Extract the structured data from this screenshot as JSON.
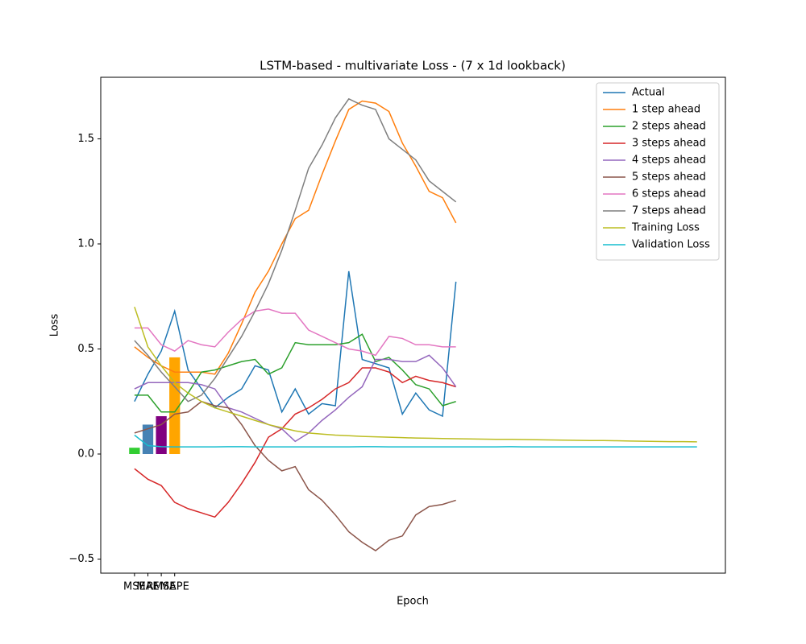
{
  "chart_data": {
    "type": "line",
    "title": "LSTM-based - multivariate Loss - (7 x 1d lookback)",
    "xlabel": "Epoch",
    "ylabel": "Loss",
    "xlim": [
      -2.52,
      44.12
    ],
    "ylim": [
      -0.567,
      1.793
    ],
    "yticks": [
      {
        "value": -0.5,
        "label": "−0.5"
      },
      {
        "value": 0,
        "label": "0.0"
      },
      {
        "value": 0.5,
        "label": "0.5"
      },
      {
        "value": 1.0,
        "label": "1.0"
      },
      {
        "value": 1.5,
        "label": "1.5"
      }
    ],
    "legend": "upper right",
    "bars": {
      "type": "bar",
      "categories": [
        "MSE",
        "MAE",
        "RMSE",
        "MAPE"
      ],
      "values": [
        0.03,
        0.14,
        0.18,
        0.46
      ],
      "colors": [
        "#32cd32",
        "#4682b4",
        "#800080",
        "#ffa500"
      ]
    },
    "series": [
      {
        "name": "Actual",
        "color": "#1f77b4",
        "values": [
          0.25,
          0.38,
          0.49,
          0.68,
          0.4,
          0.31,
          0.22,
          0.27,
          0.31,
          0.42,
          0.4,
          0.2,
          0.31,
          0.19,
          0.24,
          0.23,
          0.87,
          0.45,
          0.43,
          0.41,
          0.19,
          0.29,
          0.21,
          0.18,
          0.82
        ]
      },
      {
        "name": "1 step ahead",
        "color": "#ff7f0e",
        "values": [
          0.51,
          0.46,
          0.42,
          0.39,
          0.39,
          0.39,
          0.38,
          0.48,
          0.62,
          0.77,
          0.87,
          1.0,
          1.12,
          1.16,
          1.33,
          1.49,
          1.64,
          1.68,
          1.67,
          1.63,
          1.48,
          1.37,
          1.25,
          1.22,
          1.1
        ]
      },
      {
        "name": "2 steps ahead",
        "color": "#2ca02c",
        "values": [
          0.28,
          0.28,
          0.2,
          0.2,
          0.29,
          0.39,
          0.4,
          0.42,
          0.44,
          0.45,
          0.38,
          0.41,
          0.53,
          0.52,
          0.52,
          0.52,
          0.53,
          0.57,
          0.44,
          0.46,
          0.4,
          0.33,
          0.31,
          0.23,
          0.25
        ]
      },
      {
        "name": "3 steps ahead",
        "color": "#d62728",
        "values": [
          -0.07,
          -0.12,
          -0.15,
          -0.23,
          -0.26,
          -0.28,
          -0.3,
          -0.23,
          -0.14,
          -0.04,
          0.08,
          0.12,
          0.19,
          0.22,
          0.26,
          0.31,
          0.34,
          0.41,
          0.41,
          0.39,
          0.34,
          0.37,
          0.35,
          0.34,
          0.32
        ]
      },
      {
        "name": "4 steps ahead",
        "color": "#9467bd",
        "values": [
          0.31,
          0.34,
          0.34,
          0.34,
          0.34,
          0.33,
          0.31,
          0.22,
          0.2,
          0.17,
          0.14,
          0.12,
          0.06,
          0.1,
          0.16,
          0.21,
          0.27,
          0.32,
          0.45,
          0.45,
          0.44,
          0.44,
          0.47,
          0.41,
          0.32
        ]
      },
      {
        "name": "5 steps ahead",
        "color": "#8c564b",
        "values": [
          0.1,
          0.12,
          0.14,
          0.19,
          0.2,
          0.25,
          0.23,
          0.22,
          0.14,
          0.04,
          -0.03,
          -0.08,
          -0.06,
          -0.17,
          -0.22,
          -0.29,
          -0.37,
          -0.42,
          -0.46,
          -0.41,
          -0.39,
          -0.29,
          -0.25,
          -0.24,
          -0.22
        ]
      },
      {
        "name": "6 steps ahead",
        "color": "#e377c2",
        "values": [
          0.6,
          0.6,
          0.52,
          0.49,
          0.54,
          0.52,
          0.51,
          0.58,
          0.64,
          0.68,
          0.69,
          0.67,
          0.67,
          0.59,
          0.56,
          0.53,
          0.5,
          0.49,
          0.47,
          0.56,
          0.55,
          0.52,
          0.52,
          0.51,
          0.51
        ]
      },
      {
        "name": "7 steps ahead",
        "color": "#7f7f7f",
        "values": [
          0.54,
          0.47,
          0.39,
          0.32,
          0.25,
          0.28,
          0.36,
          0.46,
          0.56,
          0.68,
          0.81,
          0.97,
          1.16,
          1.36,
          1.47,
          1.6,
          1.69,
          1.66,
          1.64,
          1.5,
          1.45,
          1.4,
          1.3,
          1.25,
          1.2
        ]
      },
      {
        "name": "Training Loss",
        "color": "#bcbd22",
        "values": [
          0.7,
          0.51,
          0.42,
          0.34,
          0.29,
          0.25,
          0.22,
          0.2,
          0.18,
          0.16,
          0.14,
          0.125,
          0.11,
          0.1,
          0.095,
          0.09,
          0.087,
          0.084,
          0.082,
          0.08,
          0.078,
          0.076,
          0.075,
          0.074,
          0.073,
          0.072,
          0.071,
          0.07,
          0.07,
          0.069,
          0.068,
          0.067,
          0.066,
          0.065,
          0.064,
          0.064,
          0.063,
          0.062,
          0.061,
          0.06,
          0.059,
          0.059,
          0.058
        ]
      },
      {
        "name": "Validation Loss",
        "color": "#17becf",
        "values": [
          0.09,
          0.04,
          0.035,
          0.034,
          0.034,
          0.034,
          0.034,
          0.035,
          0.035,
          0.034,
          0.034,
          0.034,
          0.034,
          0.034,
          0.034,
          0.034,
          0.034,
          0.035,
          0.035,
          0.034,
          0.034,
          0.034,
          0.034,
          0.034,
          0.034,
          0.034,
          0.034,
          0.034,
          0.035,
          0.034,
          0.034,
          0.034,
          0.034,
          0.034,
          0.034,
          0.034,
          0.034,
          0.034,
          0.034,
          0.034,
          0.034,
          0.034,
          0.034
        ]
      }
    ]
  }
}
